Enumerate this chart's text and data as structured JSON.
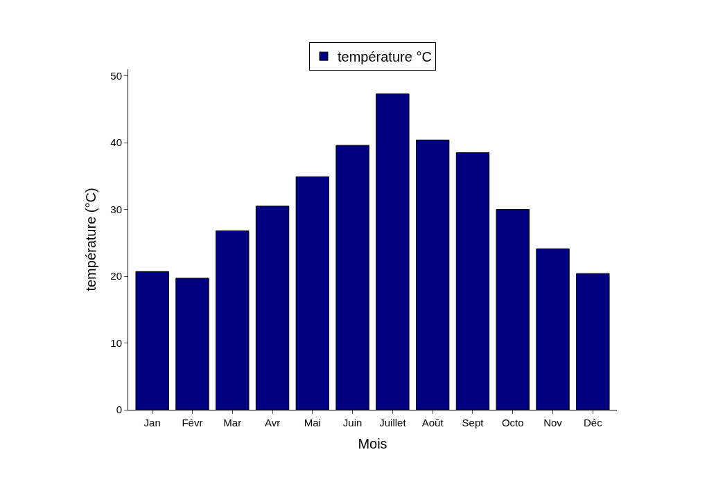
{
  "chart_data": {
    "type": "bar",
    "xlabel": "Mois",
    "ylabel": "température (°C)",
    "categories": [
      "Jan",
      "Févr",
      "Mar",
      "Avr",
      "Mai",
      "Juin",
      "Juillet",
      "Août",
      "Sept",
      "Octo",
      "Nov",
      "Déc"
    ],
    "series": [
      {
        "name": "température °C",
        "color": "#000080",
        "values": [
          20.7,
          19.7,
          26.8,
          30.5,
          34.9,
          39.6,
          47.3,
          40.4,
          38.5,
          30.0,
          24.1,
          20.4
        ]
      }
    ],
    "ylim": [
      0,
      51
    ],
    "yticks": [
      0,
      10,
      20,
      30,
      40,
      50
    ],
    "legend": "top"
  }
}
